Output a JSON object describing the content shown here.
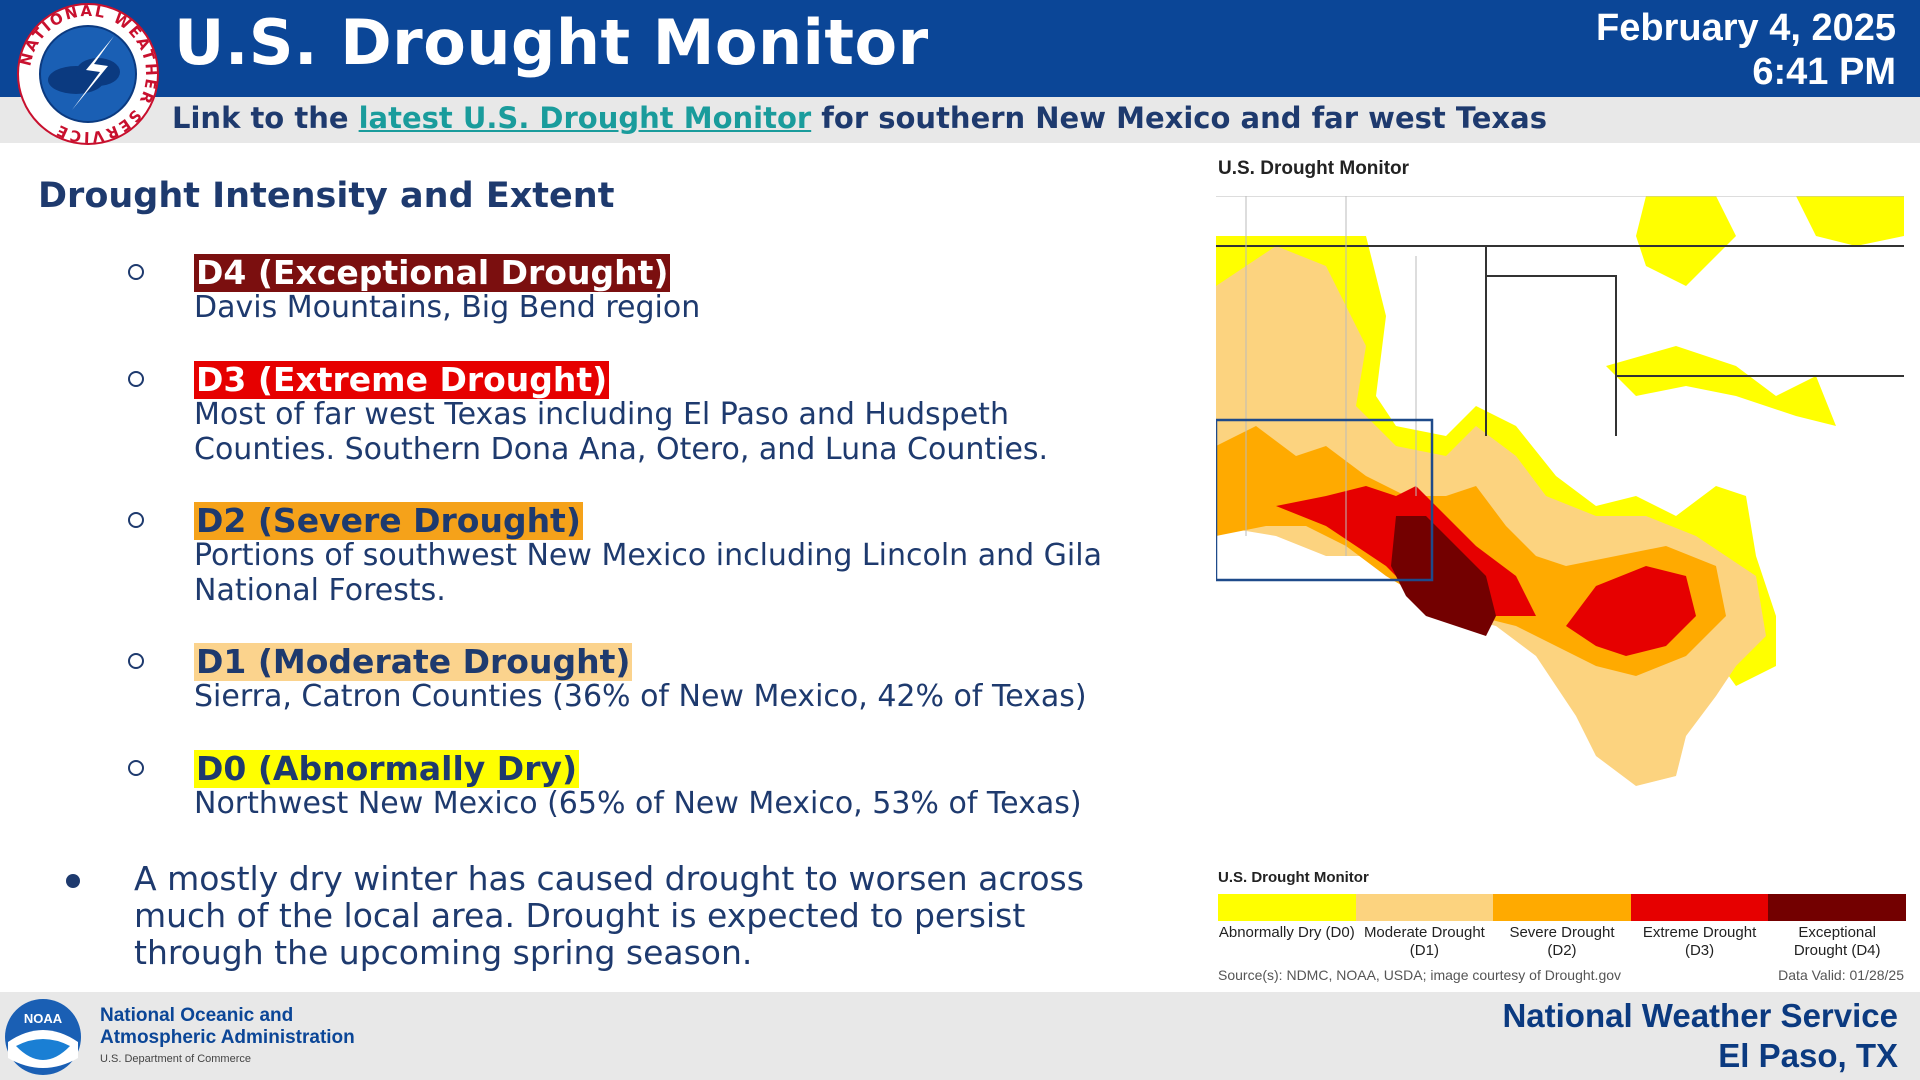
{
  "header": {
    "title": "U.S. Drought Monitor",
    "date": "February 4, 2025",
    "time": "6:41 PM"
  },
  "link_bar": {
    "prefix": "Link to the ",
    "link_text": "latest U.S. Drought Monitor",
    "suffix": " for southern New Mexico and far west Texas"
  },
  "nws_logo": {
    "ring_text": "NATIONAL WEATHER SERVICE",
    "icon": "nws-logo-icon"
  },
  "section_title": "Drought Intensity and Extent",
  "categories": [
    {
      "label": "D4 (Exceptional Drought)",
      "color": "#7b0f0f",
      "text_color": "#ffffff",
      "lines": [
        "Davis Mountains, Big Bend region"
      ]
    },
    {
      "label": "D3 (Extreme Drought)",
      "color": "#e60000",
      "text_color": "#ffffff",
      "lines": [
        "Most of far west Texas including El Paso and Hudspeth",
        "Counties. Southern Dona Ana, Otero, and Luna Counties."
      ]
    },
    {
      "label": "D2 (Severe Drought)",
      "color": "#f5a21a",
      "text_color": "#1e3a6e",
      "lines": [
        "Portions of southwest New Mexico including Lincoln and Gila",
        "National Forests."
      ]
    },
    {
      "label": "D1 (Moderate Drought)",
      "color": "#fbd38d",
      "text_color": "#1e3a6e",
      "lines": [
        "Sierra, Catron Counties (36% of New Mexico, 42% of Texas)"
      ]
    },
    {
      "label": "D0 (Abnormally Dry)",
      "color": "#ffff00",
      "text_color": "#1e3a6e",
      "lines": [
        "Northwest New Mexico (65% of New Mexico, 53% of Texas)"
      ]
    }
  ],
  "summary": [
    "A mostly dry winter has caused drought to worsen across",
    "much of the local area. Drought is expected to persist",
    "through the upcoming spring season."
  ],
  "map": {
    "title": "U.S. Drought Monitor",
    "legend_title": "U.S. Drought Monitor",
    "legend": [
      {
        "line1": "Abnormally Dry (D0)",
        "line2": "",
        "color": "#ffff00"
      },
      {
        "line1": "Moderate Drought",
        "line2": "(D1)",
        "color": "#fcd37f"
      },
      {
        "line1": "Severe Drought",
        "line2": "(D2)",
        "color": "#ffaa00"
      },
      {
        "line1": "Extreme Drought",
        "line2": "(D3)",
        "color": "#e60000"
      },
      {
        "line1": "Exceptional",
        "line2": "Drought (D4)",
        "color": "#730000"
      }
    ],
    "source": "Source(s): NDMC, NOAA, USDA; image courtesy of Drought.gov",
    "valid": "Data Valid: 01/28/25"
  },
  "footer": {
    "noaa_line1": "National Oceanic and",
    "noaa_line2": "Atmospheric Administration",
    "noaa_line3": "U.S. Department of Commerce",
    "noaa_logo_text": "NOAA",
    "office_line1": "National Weather Service",
    "office_line2": "El Paso, TX"
  }
}
